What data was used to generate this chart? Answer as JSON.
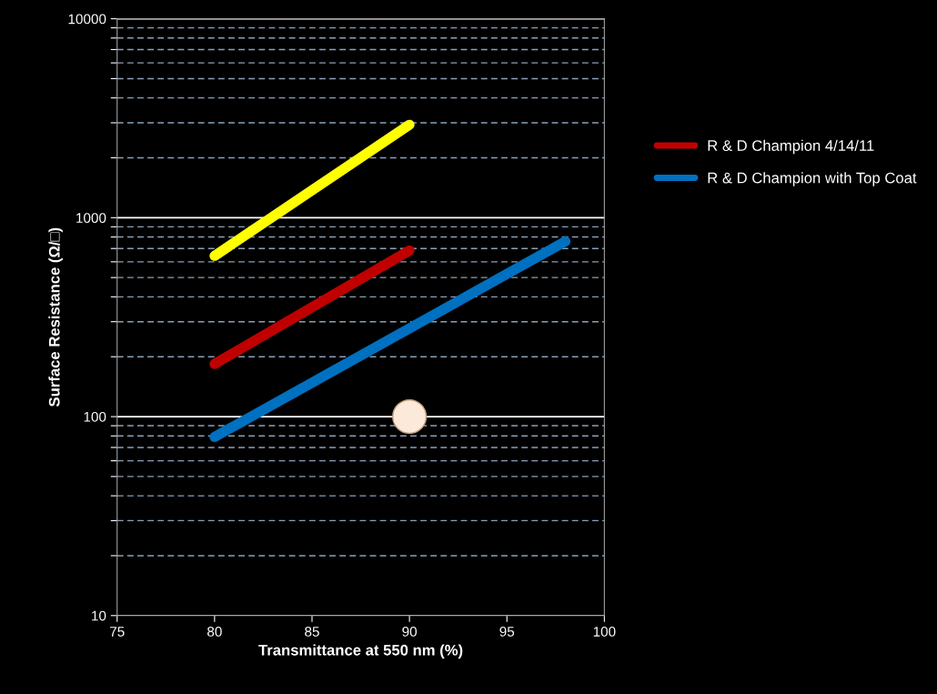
{
  "chart_data": {
    "type": "line",
    "xlabel": "Transmittance at 550 nm (%)",
    "ylabel": "Surface Resistance (Ω/□)",
    "log": "y",
    "xlim": [
      75,
      100
    ],
    "xticks": [
      75,
      80,
      85,
      90,
      95,
      100
    ],
    "ylim": [
      10,
      10000
    ],
    "yticks": [
      10,
      {
        "value": 20,
        "label": null
      },
      {
        "value": 30,
        "label": null
      },
      {
        "value": 40,
        "label": null
      },
      {
        "value": 50,
        "label": null
      },
      {
        "value": 60,
        "label": null
      },
      {
        "value": 70,
        "label": null
      },
      {
        "value": 80,
        "label": null
      },
      {
        "value": 90,
        "label": null
      },
      100,
      {
        "value": 200,
        "label": null
      },
      {
        "value": 300,
        "label": null
      },
      {
        "value": 400,
        "label": null
      },
      {
        "value": 500,
        "label": null
      },
      {
        "value": 600,
        "label": null
      },
      {
        "value": 700,
        "label": null
      },
      {
        "value": 800,
        "label": null
      },
      {
        "value": 900,
        "label": null
      },
      1000,
      {
        "value": 2000,
        "label": null
      },
      {
        "value": 3000,
        "label": null
      },
      {
        "value": 4000,
        "label": null
      },
      {
        "value": 5000,
        "label": null
      },
      {
        "value": 6000,
        "label": null
      },
      {
        "value": 7000,
        "label": null
      },
      {
        "value": 8000,
        "label": null
      },
      {
        "value": 9000,
        "label": null
      },
      10000
    ],
    "grid": true,
    "legend": "right",
    "marker": "none",
    "line_style": "solid",
    "series": [
      {
        "color": "#ffff00",
        "x": [
          80,
          90
        ],
        "values": [
          643,
          2930
        ]
      },
      {
        "name": "R & D Champion 4/14/11",
        "color": "#c00000",
        "x": [
          80,
          90
        ],
        "values": [
          184,
          684
        ]
      },
      {
        "name": "R & D Champion with Top Coat",
        "color": "#0070c0",
        "x": [
          80,
          98
        ],
        "values": [
          79,
          760
        ]
      },
      {
        "type": "scatter",
        "marker": "circle",
        "color": "#fde9d9",
        "x": [
          90
        ],
        "values": [
          100
        ]
      }
    ]
  }
}
